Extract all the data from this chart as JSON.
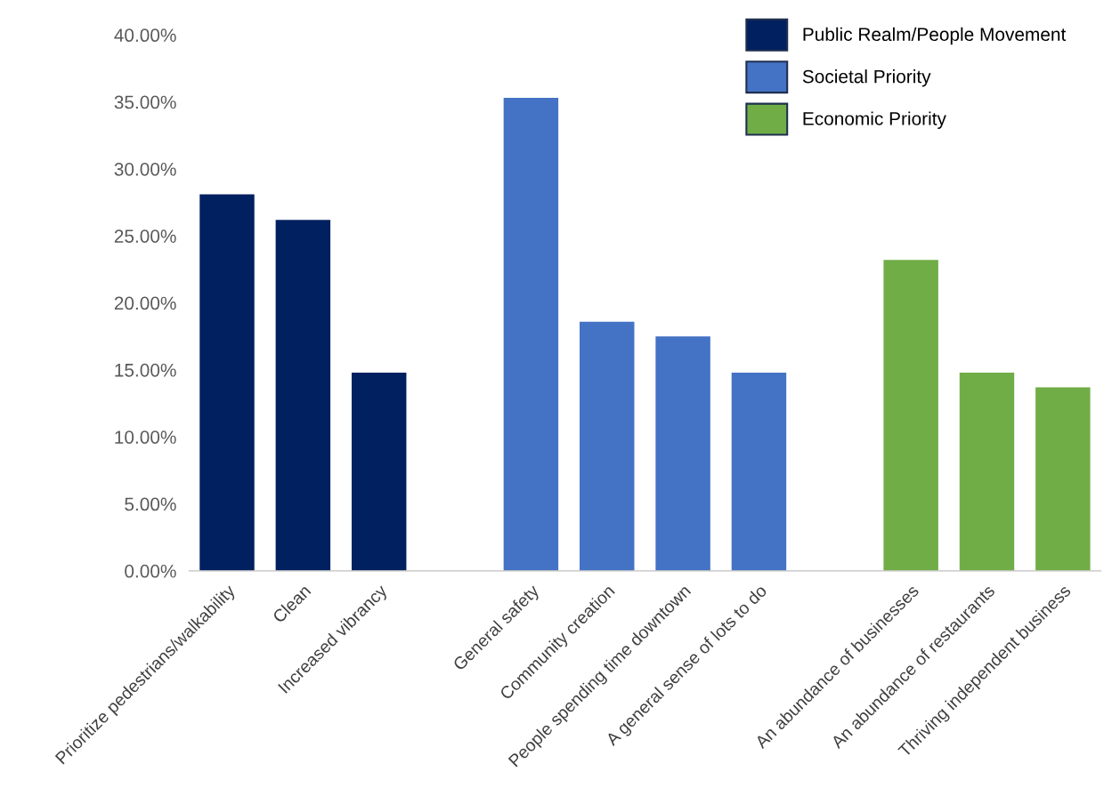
{
  "chart_data": {
    "type": "bar",
    "categories": [
      "Prioritize pedestrians/walkability",
      "Clean",
      "Increased vibrancy",
      null,
      "General safety",
      "Community creation",
      "People spending time downtown",
      "A general sense of lots to do",
      null,
      "An abundance of businesses",
      "An abundance of restaurants",
      "Thriving independent business"
    ],
    "series": [
      {
        "name": "Public Realm/People Movement",
        "color": "#002060",
        "values": [
          28.1,
          26.2,
          14.8,
          null,
          null,
          null,
          null,
          null,
          null,
          null,
          null,
          null
        ]
      },
      {
        "name": "Societal Priority",
        "color": "#4472c4",
        "values": [
          null,
          null,
          null,
          null,
          35.3,
          18.6,
          17.5,
          14.8,
          null,
          null,
          null,
          null
        ]
      },
      {
        "name": "Economic Priority",
        "color": "#70ad47",
        "values": [
          null,
          null,
          null,
          null,
          null,
          null,
          null,
          null,
          null,
          23.2,
          14.8,
          13.7
        ]
      }
    ],
    "ylim": [
      0,
      40
    ],
    "yticks": [
      {
        "value": 0,
        "label": "0.00%"
      },
      {
        "value": 5,
        "label": "5.00%"
      },
      {
        "value": 10,
        "label": "10.00%"
      },
      {
        "value": 15,
        "label": "15.00%"
      },
      {
        "value": 20,
        "label": "20.00%"
      },
      {
        "value": 25,
        "label": "25.00%"
      },
      {
        "value": 30,
        "label": "30.00%"
      },
      {
        "value": 35,
        "label": "35.00%"
      },
      {
        "value": 40,
        "label": "40.00%"
      }
    ],
    "grid": false,
    "legend": "top right"
  }
}
